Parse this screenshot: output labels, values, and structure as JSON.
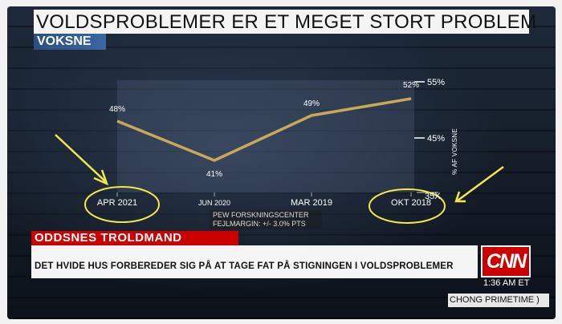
{
  "graphic": {
    "title": "VOLDSPROBLEMER ER ET MEGET STORT PROBLEM",
    "subtitle": "VOKSNE",
    "unit_label": "% AF VOKSNE",
    "source": "PEW FORSKNINGSCENTER",
    "margin_of_error": "FEJLMARGIN: +/- 3.0% PTS",
    "partial_label": "35X"
  },
  "chart_data": {
    "type": "line",
    "title": "VOLDSPROBLEMER ER ET MEGET STORT PROBLEM",
    "subtitle": "VOKSNE",
    "xlabel": "",
    "ylabel": "% AF VOKSNE",
    "categories": [
      "APR 2021",
      "JUN 2020",
      "MAR 2019",
      "OKT 2018"
    ],
    "series": [
      {
        "values": [
          48,
          41,
          49,
          52
        ]
      }
    ],
    "data_labels": [
      "48%",
      "41%",
      "49%",
      "52%"
    ],
    "y_ticks": [
      "55%",
      "45%"
    ],
    "ylim": [
      35,
      55
    ],
    "grid": false,
    "annotations": [
      "yellow circles around APR 2021 and OKT 2018",
      "yellow arrows pointing at circled labels"
    ],
    "colors": {
      "line": "#c9a85a",
      "annotation": "#f2e84a"
    }
  },
  "lower_third": {
    "show_label": "ODDSNES TROLDMAND",
    "headline": "DET HVIDE HUS FORBEREDER SIG PÅ AT TAGE FAT PÅ STIGNINGEN I VOLDSPROBLEMER"
  },
  "network": {
    "logo": "CNN",
    "time": "1:36 AM ET",
    "program": "CHONG PRIMETIME )"
  },
  "colors": {
    "brand_red": "#cc0000",
    "subtitle_blue": "#2c4f7f"
  }
}
